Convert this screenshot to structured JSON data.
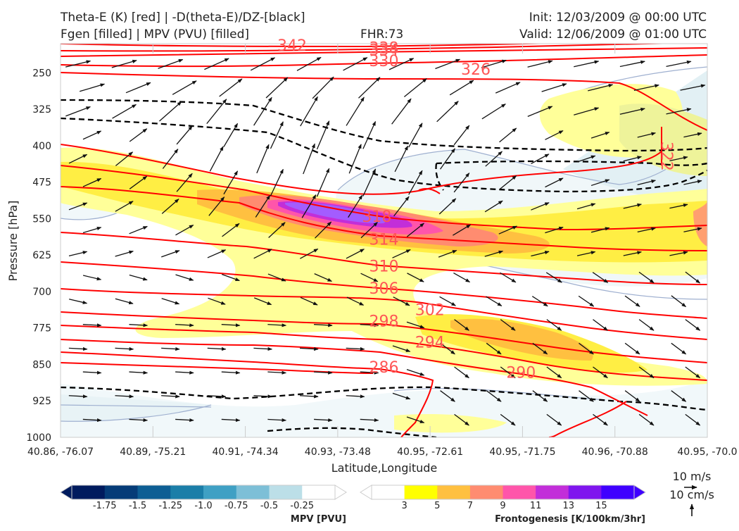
{
  "header": {
    "left_line1": "Theta-E (K) [red] | -D(theta-E)/DZ-[black]",
    "left_line2": "Fgen [filled] | MPV (PVU) [filled]",
    "fhr": "FHR:73",
    "init": "Init: 12/03/2009 @ 00:00 UTC",
    "valid": "Valid: 12/06/2009 @ 01:00 UTC"
  },
  "chart_data": {
    "type": "cross-section",
    "xlabel": "Latitude,Longitude",
    "ylabel": "Pressure [hPa]",
    "x_ticks": [
      "40.86, -76.07",
      "40.89, -75.21",
      "40.91, -74.34",
      "40.93, -73.48",
      "40.95, -72.61",
      "40.95, -71.75",
      "40.96, -70.88",
      "40.95, -70.0"
    ],
    "y_ticks": [
      "250",
      "325",
      "400",
      "475",
      "550",
      "625",
      "700",
      "775",
      "850",
      "925",
      "1000"
    ],
    "ylim": [
      190,
      1000
    ],
    "theta_e_labels": [
      {
        "label": "342",
        "x": 0.358,
        "p": 193
      },
      {
        "label": "338",
        "x": 0.5,
        "p": 198
      },
      {
        "label": "334",
        "x": 0.5,
        "p": 202
      },
      {
        "label": "330",
        "x": 0.5,
        "p": 225
      },
      {
        "label": "326",
        "x": 0.642,
        "p": 242
      },
      {
        "label": "322",
        "x": 0.929,
        "p": 410
      },
      {
        "label": "318",
        "x": 0.489,
        "p": 545
      },
      {
        "label": "314",
        "x": 0.5,
        "p": 592
      },
      {
        "label": "310",
        "x": 0.5,
        "p": 647
      },
      {
        "label": "306",
        "x": 0.5,
        "p": 693
      },
      {
        "label": "302",
        "x": 0.571,
        "p": 737
      },
      {
        "label": "298",
        "x": 0.5,
        "p": 760
      },
      {
        "label": "294",
        "x": 0.571,
        "p": 804
      },
      {
        "label": "290",
        "x": 0.712,
        "p": 866
      },
      {
        "label": "286",
        "x": 0.5,
        "p": 855
      }
    ],
    "frontogenesis_colorbar": {
      "title": "Frontogenesis [K/100km/3hr]",
      "levels": [
        "3",
        "5",
        "7",
        "9",
        "11",
        "13",
        "15"
      ],
      "colors": [
        "#ffffff",
        "#ffff00",
        "#ffc040",
        "#ff8c70",
        "#ff55aa",
        "#c22ed9",
        "#7f15ee",
        "#3f00ff"
      ]
    },
    "mpv_colorbar": {
      "title": "MPV [PVU]",
      "levels": [
        "-1.75",
        "-1.5",
        "-1.25",
        "-1.0",
        "-0.75",
        "-0.5",
        "-0.25"
      ],
      "colors": [
        "#001b5e",
        "#053c78",
        "#0d5e94",
        "#1b7ea8",
        "#3fa0c4",
        "#7dbfd7",
        "#bcdfe8",
        "#ffffff"
      ]
    },
    "reference_vectors": [
      "10 m/s",
      "10 cm/s"
    ]
  },
  "colors": {
    "theta_e": "#ff0000",
    "theta_e_label": "#ff5555",
    "dtheta_dz": "#000000",
    "mpv_contour": "#9fb0d0"
  }
}
